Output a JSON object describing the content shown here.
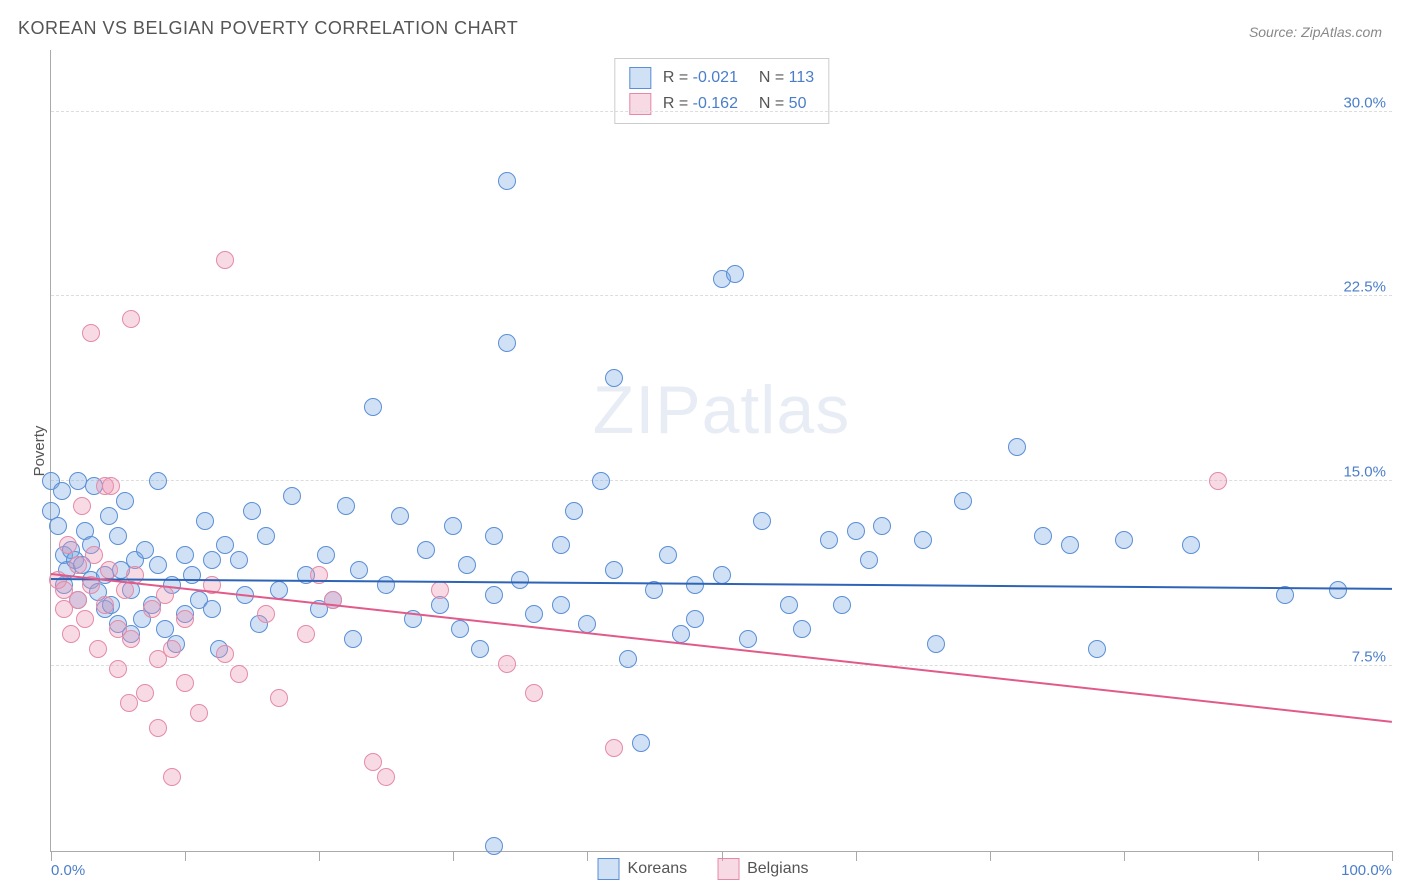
{
  "title": "KOREAN VS BELGIAN POVERTY CORRELATION CHART",
  "source_label": "Source:",
  "source_name": "ZipAtlas.com",
  "watermark_a": "ZIP",
  "watermark_b": "atlas",
  "ylabel": "Poverty",
  "chart": {
    "type": "scatter",
    "background_color": "#ffffff",
    "grid_color": "#dddddd",
    "axis_color": "#aaaaaa",
    "text_color": "#555555",
    "accent_color": "#4a7ec9",
    "title_fontsize": 18,
    "label_fontsize": 15,
    "legend_fontsize": 16,
    "xlim": [
      0,
      100
    ],
    "ylim": [
      0,
      32.5
    ],
    "ytick_step": 7.5,
    "ytick_labels": [
      "7.5%",
      "15.0%",
      "22.5%",
      "30.0%"
    ],
    "xtick_positions": [
      0,
      10,
      20,
      30,
      40,
      50,
      60,
      70,
      80,
      90,
      100
    ],
    "xaxis_min_label": "0.0%",
    "xaxis_max_label": "100.0%",
    "marker_radius": 9,
    "marker_stroke_width": 1.5,
    "marker_fill_opacity": 0.35,
    "trendline_width": 2,
    "series": [
      {
        "name": "Koreans",
        "color_stroke": "#5a8fd6",
        "color_fill": "rgba(120,165,225,0.35)",
        "trend_color": "#2e64b5",
        "r_label": "R =",
        "r_value": "-0.021",
        "n_label": "N =",
        "n_value": "113",
        "trend": {
          "x0": 0,
          "y0": 11.0,
          "x1": 100,
          "y1": 10.6
        },
        "points": [
          [
            0,
            15.0
          ],
          [
            0,
            13.8
          ],
          [
            0.5,
            13.2
          ],
          [
            0.8,
            14.6
          ],
          [
            1,
            12.0
          ],
          [
            1,
            10.8
          ],
          [
            1.2,
            11.4
          ],
          [
            1.5,
            12.2
          ],
          [
            1.8,
            11.8
          ],
          [
            2,
            15.0
          ],
          [
            2,
            10.2
          ],
          [
            2.3,
            11.6
          ],
          [
            2.5,
            13.0
          ],
          [
            3,
            12.4
          ],
          [
            3,
            11.0
          ],
          [
            3.2,
            14.8
          ],
          [
            3.5,
            10.5
          ],
          [
            4,
            9.8
          ],
          [
            4,
            11.2
          ],
          [
            4.3,
            13.6
          ],
          [
            4.5,
            10.0
          ],
          [
            5,
            12.8
          ],
          [
            5,
            9.2
          ],
          [
            5.2,
            11.4
          ],
          [
            5.5,
            14.2
          ],
          [
            6,
            10.6
          ],
          [
            6,
            8.8
          ],
          [
            6.3,
            11.8
          ],
          [
            6.8,
            9.4
          ],
          [
            7,
            12.2
          ],
          [
            7.5,
            10.0
          ],
          [
            8,
            11.6
          ],
          [
            8,
            15.0
          ],
          [
            8.5,
            9.0
          ],
          [
            9,
            10.8
          ],
          [
            9.3,
            8.4
          ],
          [
            10,
            12.0
          ],
          [
            10,
            9.6
          ],
          [
            10.5,
            11.2
          ],
          [
            11,
            10.2
          ],
          [
            11.5,
            13.4
          ],
          [
            12,
            9.8
          ],
          [
            12,
            11.8
          ],
          [
            12.5,
            8.2
          ],
          [
            13,
            12.4
          ],
          [
            14,
            11.8
          ],
          [
            14.5,
            10.4
          ],
          [
            15,
            13.8
          ],
          [
            15.5,
            9.2
          ],
          [
            16,
            12.8
          ],
          [
            17,
            10.6
          ],
          [
            18,
            14.4
          ],
          [
            19,
            11.2
          ],
          [
            20,
            9.8
          ],
          [
            20.5,
            12.0
          ],
          [
            21,
            10.2
          ],
          [
            22,
            14.0
          ],
          [
            22.5,
            8.6
          ],
          [
            23,
            11.4
          ],
          [
            24,
            18.0
          ],
          [
            25,
            10.8
          ],
          [
            26,
            13.6
          ],
          [
            27,
            9.4
          ],
          [
            28,
            12.2
          ],
          [
            29,
            10.0
          ],
          [
            30,
            13.2
          ],
          [
            30.5,
            9.0
          ],
          [
            31,
            11.6
          ],
          [
            32,
            8.2
          ],
          [
            33,
            10.4
          ],
          [
            33,
            12.8
          ],
          [
            33,
            0.2
          ],
          [
            34,
            20.6
          ],
          [
            34,
            27.2
          ],
          [
            35,
            11.0
          ],
          [
            36,
            9.6
          ],
          [
            38,
            12.4
          ],
          [
            38,
            10.0
          ],
          [
            39,
            13.8
          ],
          [
            40,
            9.2
          ],
          [
            41,
            15.0
          ],
          [
            42,
            11.4
          ],
          [
            42,
            19.2
          ],
          [
            43,
            7.8
          ],
          [
            44,
            4.4
          ],
          [
            45,
            10.6
          ],
          [
            46,
            12.0
          ],
          [
            47,
            8.8
          ],
          [
            48,
            9.4
          ],
          [
            48,
            10.8
          ],
          [
            50,
            11.2
          ],
          [
            50,
            23.2
          ],
          [
            51,
            23.4
          ],
          [
            52,
            8.6
          ],
          [
            53,
            13.4
          ],
          [
            55,
            10.0
          ],
          [
            56,
            9.0
          ],
          [
            58,
            12.6
          ],
          [
            59,
            10.0
          ],
          [
            60,
            13.0
          ],
          [
            61,
            11.8
          ],
          [
            62,
            13.2
          ],
          [
            65,
            12.6
          ],
          [
            66,
            8.4
          ],
          [
            68,
            14.2
          ],
          [
            72,
            16.4
          ],
          [
            74,
            12.8
          ],
          [
            76,
            12.4
          ],
          [
            78,
            8.2
          ],
          [
            80,
            12.6
          ],
          [
            85,
            12.4
          ],
          [
            92,
            10.4
          ],
          [
            96,
            10.6
          ]
        ]
      },
      {
        "name": "Belgians",
        "color_stroke": "#e48aa8",
        "color_fill": "rgba(235,150,180,0.35)",
        "trend_color": "#e15a8a",
        "r_label": "R =",
        "r_value": "-0.162",
        "n_label": "N =",
        "n_value": "50",
        "trend": {
          "x0": 0,
          "y0": 11.2,
          "x1": 100,
          "y1": 5.2
        },
        "points": [
          [
            0.5,
            11.0
          ],
          [
            1,
            9.8
          ],
          [
            1,
            10.6
          ],
          [
            1.3,
            12.4
          ],
          [
            1.5,
            8.8
          ],
          [
            2,
            10.2
          ],
          [
            2,
            11.6
          ],
          [
            2.3,
            14.0
          ],
          [
            2.5,
            9.4
          ],
          [
            3,
            21.0
          ],
          [
            3,
            10.8
          ],
          [
            3.2,
            12.0
          ],
          [
            3.5,
            8.2
          ],
          [
            4,
            14.8
          ],
          [
            4,
            10.0
          ],
          [
            4.3,
            11.4
          ],
          [
            4.5,
            14.8
          ],
          [
            5,
            9.0
          ],
          [
            5,
            7.4
          ],
          [
            5.5,
            10.6
          ],
          [
            5.8,
            6.0
          ],
          [
            6,
            8.6
          ],
          [
            6,
            21.6
          ],
          [
            6.3,
            11.2
          ],
          [
            7,
            6.4
          ],
          [
            7.5,
            9.8
          ],
          [
            8,
            7.8
          ],
          [
            8,
            5.0
          ],
          [
            8.5,
            10.4
          ],
          [
            9,
            3.0
          ],
          [
            9,
            8.2
          ],
          [
            10,
            6.8
          ],
          [
            10,
            9.4
          ],
          [
            11,
            5.6
          ],
          [
            12,
            10.8
          ],
          [
            13,
            8.0
          ],
          [
            13,
            24.0
          ],
          [
            14,
            7.2
          ],
          [
            16,
            9.6
          ],
          [
            17,
            6.2
          ],
          [
            19,
            8.8
          ],
          [
            20,
            11.2
          ],
          [
            21,
            10.2
          ],
          [
            24,
            3.6
          ],
          [
            25,
            3.0
          ],
          [
            29,
            10.6
          ],
          [
            34,
            7.6
          ],
          [
            36,
            6.4
          ],
          [
            42,
            4.2
          ],
          [
            87,
            15.0
          ]
        ]
      }
    ]
  }
}
